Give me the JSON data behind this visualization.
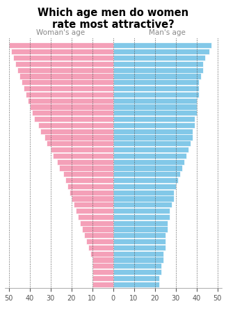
{
  "title": "Which age men do women\nrate most attractive?",
  "left_label": "Woman's age",
  "right_label": "Man's age",
  "pink_color": "#F4A0B8",
  "blue_color": "#82C8E8",
  "background_color": "#FFFFFF",
  "pink_values": [
    50,
    49,
    48,
    47,
    46,
    45,
    44,
    43,
    42,
    41,
    40,
    39,
    38,
    36,
    35,
    33,
    32,
    30,
    29,
    27,
    26,
    24,
    23,
    22,
    21,
    20,
    19,
    18,
    17,
    16,
    15,
    14,
    13,
    12,
    11,
    10,
    10,
    10,
    10,
    10
  ],
  "blue_values": [
    47,
    46,
    44,
    43,
    43,
    42,
    41,
    41,
    41,
    40,
    40,
    40,
    39,
    39,
    38,
    38,
    37,
    36,
    35,
    34,
    33,
    32,
    31,
    30,
    29,
    29,
    28,
    27,
    27,
    26,
    26,
    25,
    25,
    25,
    24,
    24,
    23,
    23,
    22,
    22
  ]
}
